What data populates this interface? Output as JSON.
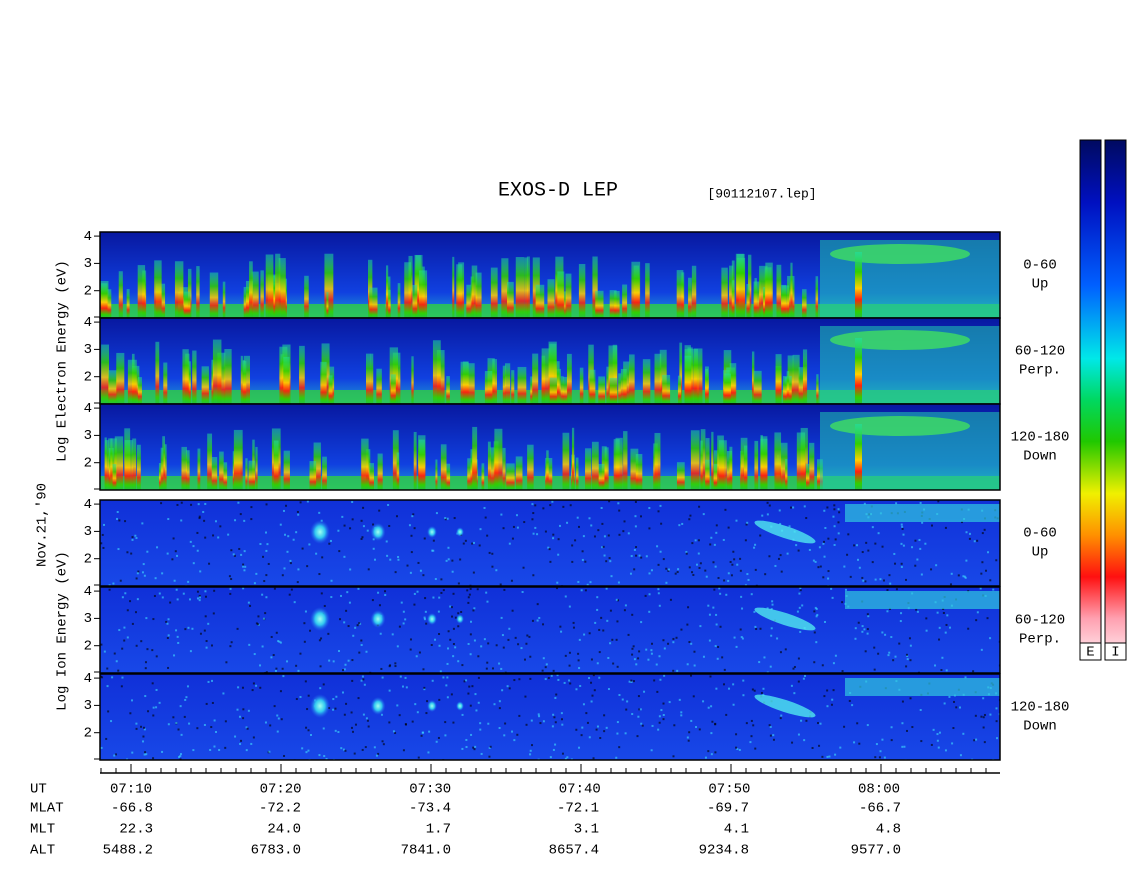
{
  "title": "EXOS-D LEP",
  "file": "[90112107.lep]",
  "date": "Nov.21,'90",
  "electron_axis_label": "Log  Electron  Energy  (eV)",
  "ion_axis_label": "Log  Ion  Energy  (eV)",
  "panel_ylim": [
    1,
    4.15
  ],
  "panel_yticks": [
    2,
    3,
    4
  ],
  "panels": [
    {
      "species": "electron",
      "angle": "0-60",
      "direction": "Up"
    },
    {
      "species": "electron",
      "angle": "60-120",
      "direction": "Perp."
    },
    {
      "species": "electron",
      "angle": "120-180",
      "direction": "Down"
    },
    {
      "species": "ion",
      "angle": "0-60",
      "direction": "Up"
    },
    {
      "species": "ion",
      "angle": "60-120",
      "direction": "Perp."
    },
    {
      "species": "ion",
      "angle": "120-180",
      "direction": "Down"
    }
  ],
  "colorbar_labels": [
    "E",
    "I"
  ],
  "ephemeris": {
    "rows": [
      {
        "name": "UT",
        "values": [
          "07:10",
          "07:20",
          "07:30",
          "07:40",
          "07:50",
          "08:00"
        ]
      },
      {
        "name": "MLAT",
        "values": [
          "-66.8",
          "-72.2",
          "-73.4",
          "-72.1",
          "-69.7",
          "-66.7"
        ]
      },
      {
        "name": "MLT",
        "values": [
          "22.3",
          "24.0",
          "1.7",
          "3.1",
          "4.1",
          "4.8"
        ]
      },
      {
        "name": "ALT",
        "values": [
          "5488.2",
          "6783.0",
          "7841.0",
          "8657.4",
          "9234.8",
          "9577.0"
        ]
      }
    ]
  }
}
